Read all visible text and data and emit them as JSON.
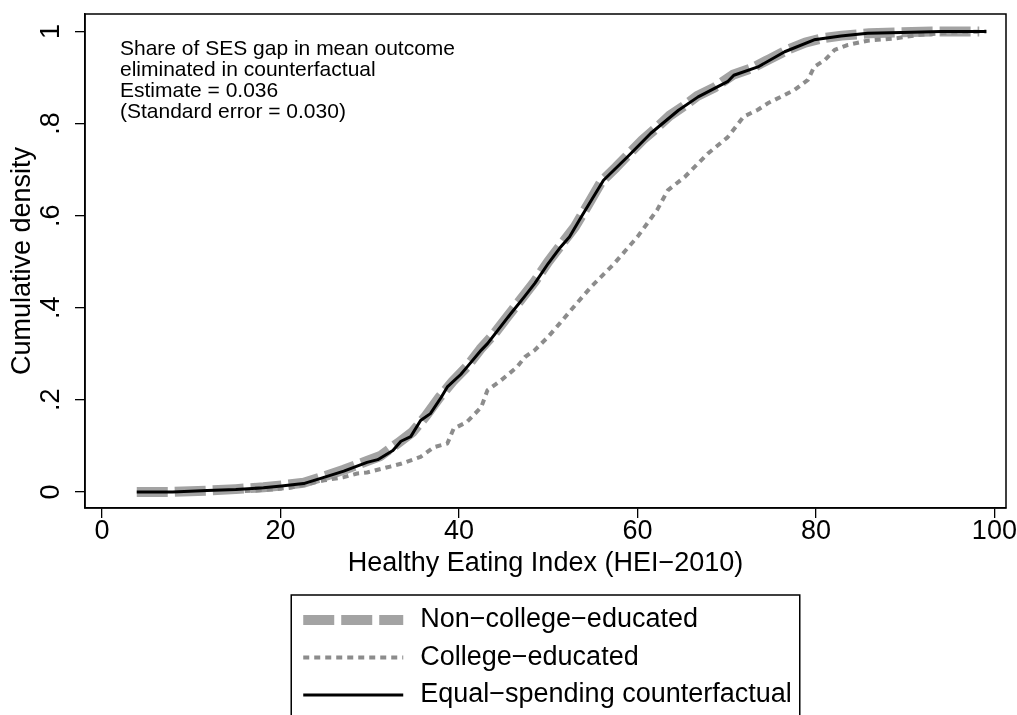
{
  "chart_data": {
    "type": "line",
    "xlabel": "Healthy Eating Index (HEI−2010)",
    "ylabel": "Cumulative density",
    "xlim": [
      -1.9,
      101.3
    ],
    "xticks": [
      0,
      20,
      40,
      60,
      80,
      100
    ],
    "ylim": [
      -0.035,
      1.038
    ],
    "yticks": [
      0,
      {
        "value": 0.2,
        "label": ".2"
      },
      {
        "value": 0.4,
        "label": ".4"
      },
      {
        "value": 0.6,
        "label": ".6"
      },
      {
        "value": 0.8,
        "label": ".8"
      },
      1
    ],
    "legend": "bottom",
    "annotations": [
      "Share of SES gap in mean outcome\neliminated in counterfactual\nEstimate = 0.036\n(Standard error = 0.030)"
    ],
    "series": [
      {
        "name": "Non−college−educated",
        "color": "#a3a3a3",
        "line_style": "dashed",
        "x": [
          3.9,
          7.9,
          12,
          15,
          18.1,
          20.1,
          22.6,
          24.6,
          27.1,
          29.7,
          31.2,
          33.3,
          34.8,
          36.3,
          37.8,
          39.3,
          40.9,
          42.4,
          43.9,
          45.4,
          46.9,
          48.5,
          50,
          51.5,
          53,
          54.5,
          56,
          57.6,
          59.1,
          60.6,
          62.1,
          63.6,
          65.2,
          66.7,
          68.7,
          70.7,
          72.8,
          74.8,
          76.8,
          78.8,
          80.9,
          82.9,
          86,
          89,
          93,
          98.3
        ],
        "values": [
          0,
          0,
          0.003,
          0.006,
          0.01,
          0.014,
          0.02,
          0.032,
          0.048,
          0.067,
          0.078,
          0.108,
          0.13,
          0.165,
          0.205,
          0.24,
          0.272,
          0.31,
          0.342,
          0.38,
          0.417,
          0.457,
          0.5,
          0.538,
          0.576,
          0.625,
          0.675,
          0.705,
          0.735,
          0.765,
          0.79,
          0.817,
          0.838,
          0.86,
          0.879,
          0.906,
          0.92,
          0.94,
          0.96,
          0.976,
          0.986,
          0.991,
          0.996,
          0.998,
          1,
          1
        ]
      },
      {
        "name": "College−educated",
        "color": "#8c8c8c",
        "line_style": "dotted",
        "x": [
          16,
          18.9,
          21.1,
          24.9,
          27.1,
          28.6,
          29.7,
          32.3,
          33.5,
          35.7,
          37.2,
          38.7,
          39.4,
          40.9,
          42.5,
          43.2,
          44.7,
          46.5,
          47.4,
          48.5,
          50,
          51.3,
          53,
          54.8,
          57.4,
          60,
          62.2,
          63.4,
          65.3,
          67.9,
          70.1,
          71.9,
          73.5,
          74.6,
          77.6,
          79.1,
          79.8,
          81,
          82.1,
          83.6,
          85.8,
          88.9,
          91.4,
          95,
          99.1
        ],
        "values": [
          0.002,
          0.005,
          0.009,
          0.025,
          0.032,
          0.04,
          0.042,
          0.055,
          0.061,
          0.076,
          0.097,
          0.105,
          0.137,
          0.152,
          0.184,
          0.221,
          0.242,
          0.271,
          0.293,
          0.308,
          0.337,
          0.366,
          0.405,
          0.445,
          0.496,
          0.554,
          0.612,
          0.655,
          0.684,
          0.735,
          0.77,
          0.815,
          0.83,
          0.844,
          0.873,
          0.895,
          0.923,
          0.938,
          0.96,
          0.971,
          0.98,
          0.985,
          0.992,
          0.998,
          1
        ]
      },
      {
        "name": "Equal−spending counterfactual",
        "color": "#000000",
        "line_style": "solid",
        "x": [
          3.9,
          7.9,
          11.8,
          15,
          18.1,
          20.1,
          22.6,
          24.6,
          27.1,
          29.7,
          30.9,
          32.6,
          33.5,
          34.6,
          35.7,
          36.8,
          38,
          38.7,
          40.2,
          40.9,
          42.5,
          43.2,
          45.8,
          47.3,
          48.5,
          50,
          51.4,
          52.4,
          53.7,
          56.2,
          58.9,
          61.5,
          64.6,
          66.8,
          70.1,
          70.8,
          73.5,
          76.5,
          79.8,
          82.8,
          85.8,
          89.6,
          94,
          99.1
        ],
        "values": [
          0,
          0,
          0.003,
          0.005,
          0.009,
          0.013,
          0.018,
          0.03,
          0.045,
          0.064,
          0.07,
          0.09,
          0.11,
          0.12,
          0.155,
          0.17,
          0.205,
          0.228,
          0.255,
          0.271,
          0.308,
          0.322,
          0.387,
          0.423,
          0.453,
          0.496,
          0.532,
          0.554,
          0.597,
          0.677,
          0.728,
          0.779,
          0.829,
          0.858,
          0.891,
          0.905,
          0.923,
          0.956,
          0.982,
          0.99,
          0.996,
          0.998,
          1,
          1
        ]
      }
    ]
  }
}
